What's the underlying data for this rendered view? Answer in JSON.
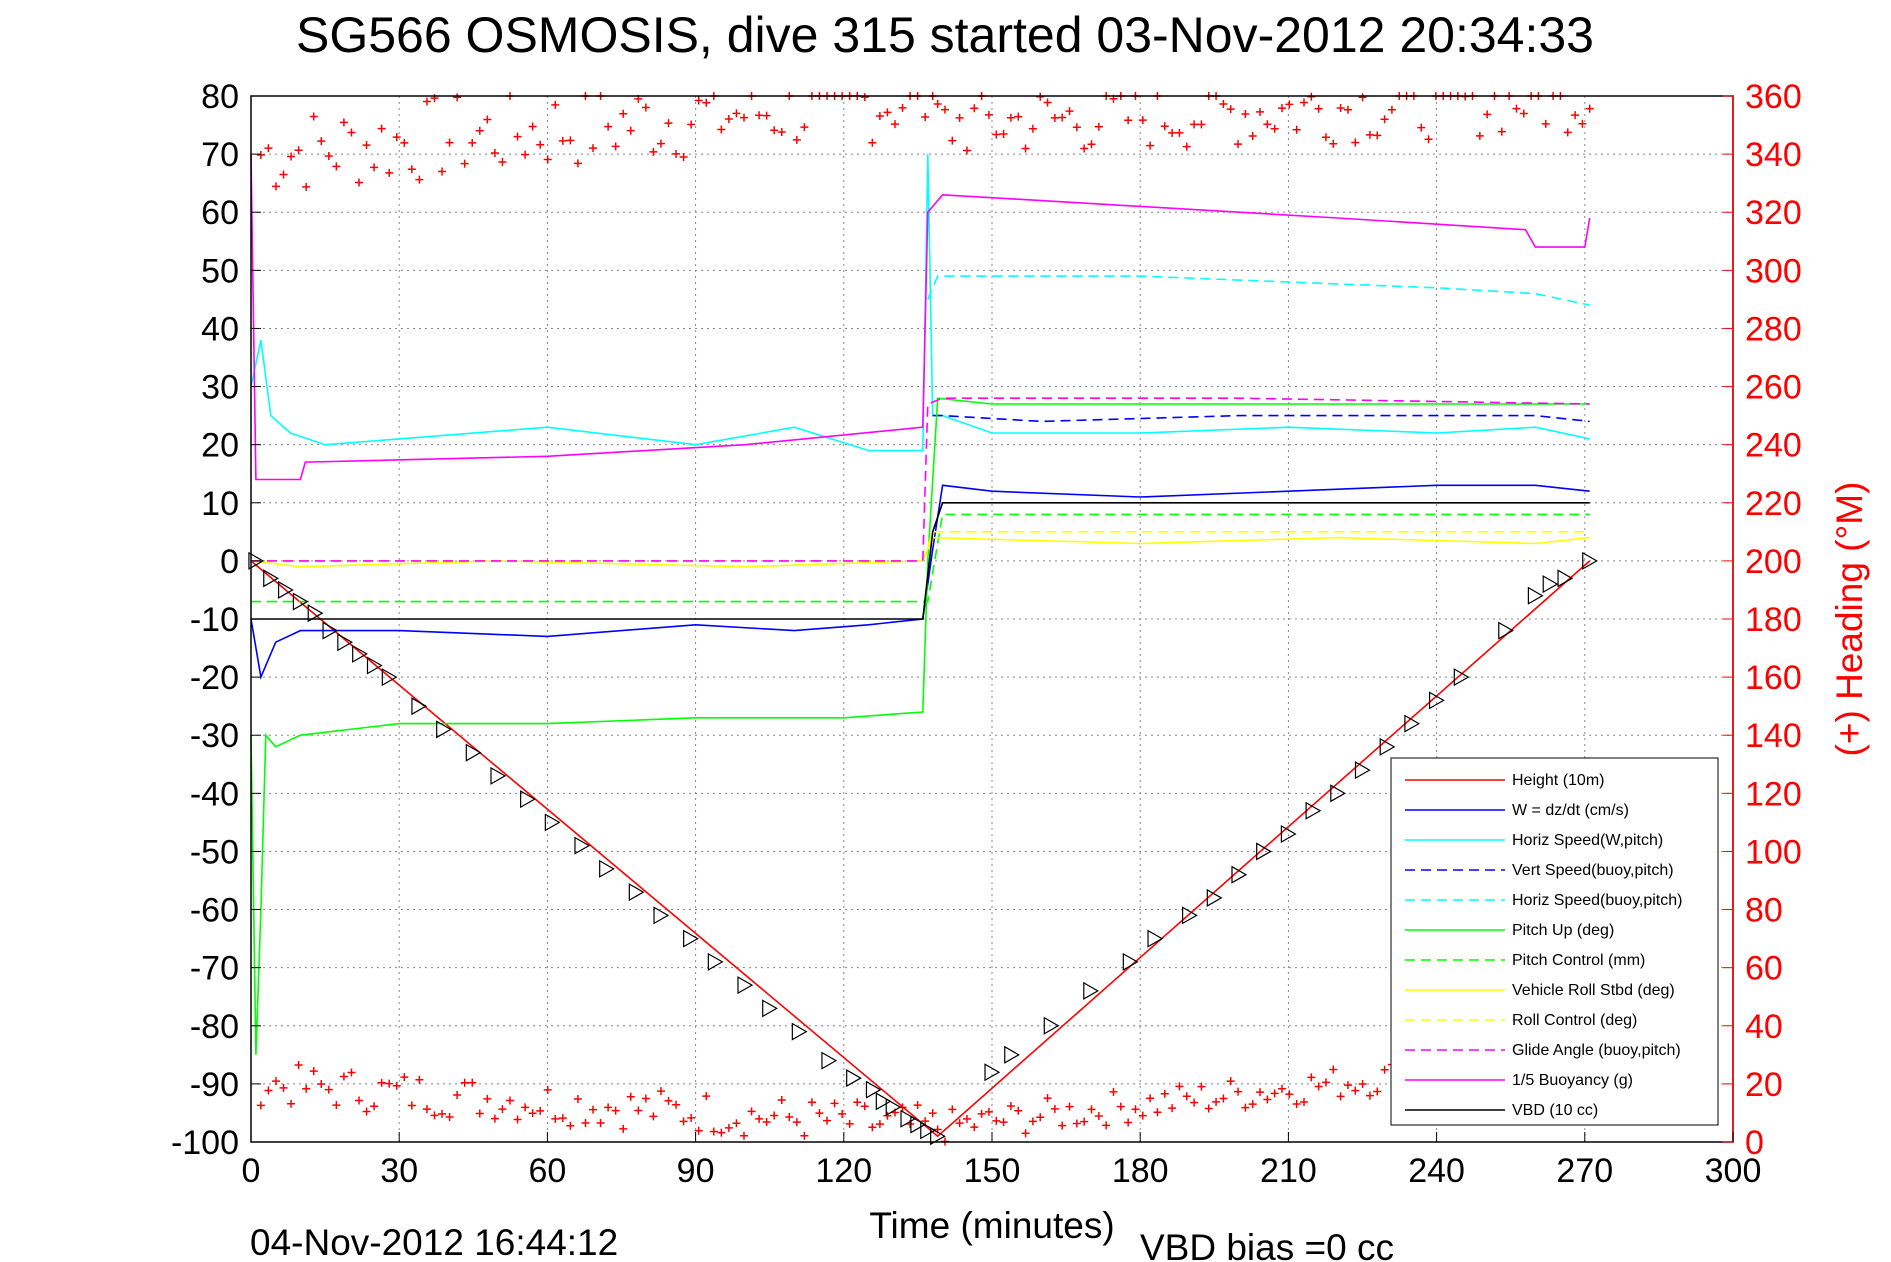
{
  "chart_data": {
    "type": "line",
    "title": "SG566 OSMOSIS, dive 315 started 03-Nov-2012 20:34:33",
    "xlabel": "Time (minutes)",
    "ylabel": "",
    "y2label": "(+) Heading (°M)",
    "xlim": [
      0,
      300
    ],
    "ylim": [
      -100,
      80
    ],
    "y2lim": [
      0,
      360
    ],
    "xticks": [
      "0",
      "30",
      "60",
      "90",
      "120",
      "150",
      "180",
      "210",
      "240",
      "270",
      "300"
    ],
    "yticks": [
      "80",
      "70",
      "60",
      "50",
      "40",
      "30",
      "20",
      "10",
      "0",
      "-10",
      "-20",
      "-30",
      "-40",
      "-50",
      "-60",
      "-70",
      "-80",
      "-90",
      "-100"
    ],
    "y2ticks": [
      "360",
      "340",
      "320",
      "300",
      "280",
      "260",
      "240",
      "220",
      "200",
      "180",
      "160",
      "140",
      "120",
      "100",
      "80",
      "60",
      "40",
      "20",
      "0"
    ],
    "grid": true,
    "legend_position": "bottom-right",
    "series": [
      {
        "name": "Height (10m)",
        "color": "#ff0000",
        "style": "solid",
        "x": [
          0,
          139,
          271
        ],
        "y": [
          0,
          -99,
          0
        ]
      },
      {
        "name": "W = dz/dt (cm/s)",
        "color": "#0000ff",
        "style": "solid",
        "x": [
          0,
          2,
          5,
          10,
          30,
          60,
          90,
          110,
          125,
          136,
          138,
          140,
          150,
          180,
          210,
          240,
          260,
          271
        ],
        "y": [
          -10,
          -20,
          -14,
          -12,
          -12,
          -13,
          -11,
          -12,
          -11,
          -10,
          2,
          13,
          12,
          11,
          12,
          13,
          13,
          12
        ]
      },
      {
        "name": "Horiz Speed(W,pitch)",
        "color": "#00ffff",
        "style": "solid",
        "x": [
          0,
          2,
          4,
          8,
          15,
          30,
          60,
          90,
          110,
          125,
          136,
          137,
          138,
          140,
          150,
          180,
          210,
          240,
          260,
          271
        ],
        "y": [
          30,
          38,
          25,
          22,
          20,
          21,
          23,
          20,
          23,
          19,
          19,
          70,
          25,
          25,
          22,
          22,
          23,
          22,
          23,
          21
        ]
      },
      {
        "name": "Vert Speed(buoy,pitch)",
        "color": "#0000ff",
        "style": "dashed",
        "x": [
          138,
          140,
          160,
          200,
          240,
          260,
          271
        ],
        "y": [
          25,
          25,
          24,
          25,
          25,
          25,
          24
        ]
      },
      {
        "name": "Horiz Speed(buoy,pitch)",
        "color": "#00ffff",
        "style": "dashed",
        "x": [
          137,
          139,
          150,
          180,
          210,
          240,
          260,
          271
        ],
        "y": [
          45,
          49,
          49,
          49,
          48,
          47,
          46,
          44
        ]
      },
      {
        "name": "Pitch Up (deg)",
        "color": "#00ff00",
        "style": "solid",
        "x": [
          0,
          1,
          2,
          3,
          5,
          10,
          30,
          60,
          90,
          120,
          136,
          137,
          139,
          150,
          180,
          210,
          240,
          260,
          271
        ],
        "y": [
          -30,
          -85,
          -60,
          -30,
          -32,
          -30,
          -28,
          -28,
          -27,
          -27,
          -26,
          0,
          28,
          27,
          27,
          27,
          27,
          27,
          27
        ]
      },
      {
        "name": "Pitch Control (mm)",
        "color": "#00ff00",
        "style": "dashed",
        "x": [
          0,
          135,
          137,
          140,
          271
        ],
        "y": [
          -7,
          -7,
          -7,
          8,
          8
        ]
      },
      {
        "name": "Vehicle Roll Stbd (deg)",
        "color": "#ffff00",
        "style": "solid",
        "x": [
          0,
          10,
          50,
          100,
          136,
          138,
          180,
          220,
          260,
          271
        ],
        "y": [
          0,
          -1,
          0,
          -1,
          0,
          4,
          3,
          4,
          3,
          4
        ]
      },
      {
        "name": "Roll Control (deg)",
        "color": "#ffff00",
        "style": "dashed",
        "x": [
          0,
          136,
          138,
          271
        ],
        "y": [
          0,
          0,
          5,
          5
        ]
      },
      {
        "name": "Glide Angle (buoy,pitch)",
        "color": "#ff00ff",
        "style": "dashed",
        "x": [
          0,
          136,
          137,
          140,
          200,
          271
        ],
        "y": [
          0,
          0,
          27,
          28,
          28,
          27
        ]
      },
      {
        "name": "1/5 Buoyancy (g)",
        "color": "#ff00ff",
        "style": "solid",
        "x": [
          0,
          1,
          2,
          10,
          11,
          60,
          100,
          136,
          137,
          140,
          180,
          220,
          258,
          260,
          270,
          271
        ],
        "y": [
          70,
          14,
          14,
          14,
          17,
          18,
          20,
          23,
          60,
          63,
          61,
          59,
          57,
          54,
          54,
          59
        ]
      },
      {
        "name": "VBD (10 cc)",
        "color": "#000000",
        "style": "solid",
        "x": [
          0,
          136,
          138,
          140,
          271
        ],
        "y": [
          -10,
          -10,
          5,
          10,
          10
        ]
      }
    ],
    "heading_points": {
      "name": "(+) Heading",
      "color": "#ff0000",
      "marker": "+",
      "axis": "right",
      "segments": [
        {
          "x": [
            2,
            138
          ],
          "y": [
            340,
            360
          ],
          "spread": 30
        },
        {
          "x": [
            2,
            138
          ],
          "y": [
            20,
            5
          ],
          "spread": 15
        },
        {
          "x": [
            139,
            271
          ],
          "y": [
            5,
            30
          ],
          "spread": 12
        },
        {
          "x": [
            139,
            271
          ],
          "y": [
            350,
            360
          ],
          "spread": 25
        }
      ]
    },
    "dive_markers": {
      "marker": "triangle",
      "color": "#000000",
      "x": [
        1,
        4,
        7,
        10,
        13,
        16,
        19,
        22,
        25,
        28,
        34,
        39,
        45,
        50,
        56,
        61,
        67,
        72,
        78,
        83,
        89,
        94,
        100,
        105,
        111,
        117,
        122,
        126,
        128,
        130,
        133,
        135,
        137,
        139,
        150,
        154,
        162,
        170,
        178,
        183,
        190,
        195,
        200,
        205,
        210,
        215,
        220,
        225,
        230,
        235,
        240,
        245,
        254,
        260,
        263,
        266,
        271
      ],
      "y": [
        0,
        -3,
        -5,
        -7,
        -9,
        -12,
        -14,
        -16,
        -18,
        -20,
        -25,
        -29,
        -33,
        -37,
        -41,
        -45,
        -49,
        -53,
        -57,
        -61,
        -65,
        -69,
        -73,
        -77,
        -81,
        -86,
        -89,
        -91,
        -93,
        -94,
        -96,
        -97,
        -98,
        -99,
        -88,
        -85,
        -80,
        -74,
        -69,
        -65,
        -61,
        -58,
        -54,
        -50,
        -47,
        -43,
        -40,
        -36,
        -32,
        -28,
        -24,
        -20,
        -12,
        -6,
        -4,
        -3,
        0
      ]
    },
    "legend": [
      "Height (10m)",
      "W = dz/dt (cm/s)",
      "Horiz Speed(W,pitch)",
      "Vert Speed(buoy,pitch)",
      "Horiz Speed(buoy,pitch)",
      "Pitch Up (deg)",
      "Pitch Control (mm)",
      "Vehicle Roll Stbd (deg)",
      "Roll Control (deg)",
      "Glide Angle (buoy,pitch)",
      "1/5 Buoyancy (g)",
      "VBD (10 cc)"
    ]
  },
  "footer": {
    "timestamp": "04-Nov-2012 16:44:12",
    "vbd_bias": "VBD bias =0 cc"
  }
}
